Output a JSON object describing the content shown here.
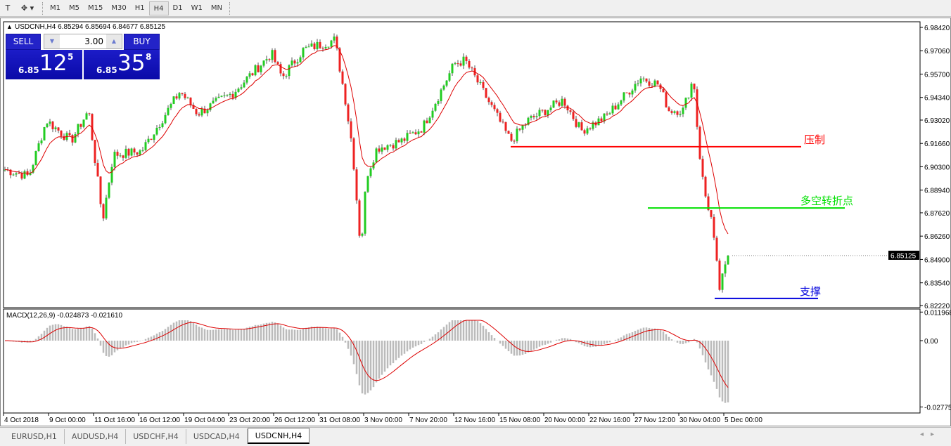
{
  "toolbar": {
    "timeframes": [
      "M1",
      "M5",
      "M15",
      "M30",
      "H1",
      "H4",
      "D1",
      "W1",
      "MN"
    ],
    "active": "H4"
  },
  "chart": {
    "header": "USDCNH,H4  6.85294 6.85694 6.84677 6.85125",
    "symbol": "USDCNH",
    "timeframe": "H4",
    "open": 6.85294,
    "high": 6.85694,
    "low": 6.84677,
    "close": 6.85125,
    "price_axis": [
      "6.98420",
      "6.97060",
      "6.95700",
      "6.94340",
      "6.93020",
      "6.91660",
      "6.90300",
      "6.88940",
      "6.87620",
      "6.86260",
      "6.84900",
      "6.83540",
      "6.82220"
    ],
    "current_price_label": "6.85125",
    "time_axis": [
      "4 Oct 2018",
      "9 Oct 00:00",
      "11 Oct 16:00",
      "16 Oct 12:00",
      "19 Oct 04:00",
      "23 Oct 20:00",
      "26 Oct 12:00",
      "31 Oct 08:00",
      "3 Nov 00:00",
      "7 Nov 20:00",
      "12 Nov 16:00",
      "15 Nov 08:00",
      "20 Nov 00:00",
      "22 Nov 16:00",
      "27 Nov 12:00",
      "30 Nov 04:00",
      "5 Dec 00:00"
    ],
    "price_path": [
      6.9015,
      6.8975,
      6.93,
      6.918,
      6.936,
      6.872,
      6.91,
      6.912,
      6.947,
      6.934,
      6.946,
      6.969,
      6.955,
      6.971,
      6.977,
      6.942,
      6.914,
      6.8545,
      6.8975,
      6.914,
      6.918,
      6.926,
      6.963,
      6.965,
      6.951,
      6.918,
      6.93,
      6.942,
      6.924,
      6.932,
      6.955,
      6.951,
      6.936,
      6.936,
      6.955,
      6.916,
      6.889,
      6.873,
      6.832,
      6.852
    ],
    "levels": [
      {
        "label": "压制",
        "price": 6.9147,
        "color": "#ff0000"
      },
      {
        "label": "多空转折点",
        "price": 6.879,
        "color": "#00e000"
      },
      {
        "label": "支撑",
        "price": 6.8263,
        "color": "#0000dd"
      }
    ],
    "up_color": "#22cc22",
    "down_color": "#ee2222",
    "ma_color": "#dd0000"
  },
  "macd": {
    "header": "MACD(12,26,9) -0.024873 -0.021610",
    "axis": [
      "0.011968",
      "0.00",
      "-0.027758"
    ]
  },
  "trade": {
    "sell_label": "SELL",
    "buy_label": "BUY",
    "lot": "3.00",
    "sell_prefix": "6.85",
    "sell_big": "12",
    "sell_sup": "5",
    "buy_prefix": "6.85",
    "buy_big": "35",
    "buy_sup": "8"
  },
  "tabs": [
    "EURUSD,H1",
    "AUDUSD,H4",
    "USDCHF,H4",
    "USDCAD,H4",
    "USDCNH,H4"
  ],
  "active_tab": "USDCNH,H4"
}
